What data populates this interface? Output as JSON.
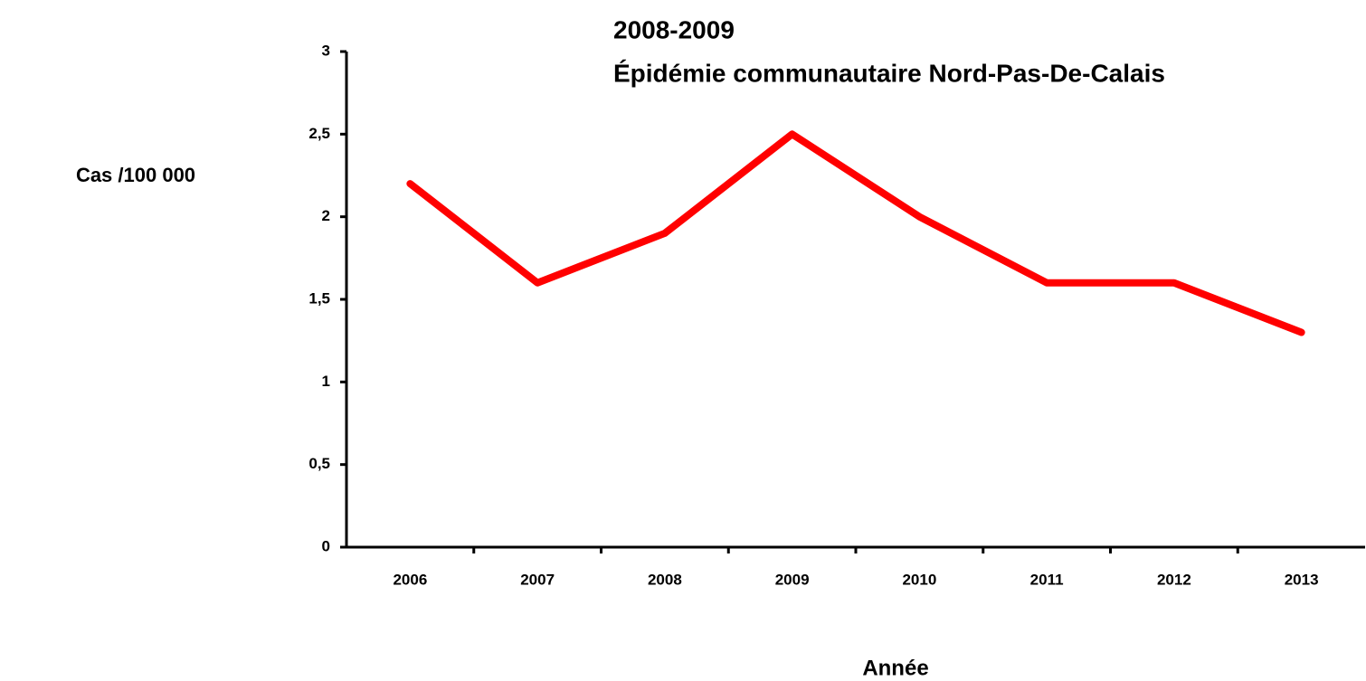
{
  "chart_data": {
    "type": "line",
    "annotation": [
      "2008-2009",
      "Épidémie communautaire Nord-Pas-De-Calais"
    ],
    "y_label": "Cas /100 000",
    "x_label": "Année",
    "categories": [
      "2006",
      "2007",
      "2008",
      "2009",
      "2010",
      "2011",
      "2012",
      "2013"
    ],
    "series": [
      {
        "color": "#ff0000",
        "values": [
          2.2,
          1.6,
          1.9,
          2.5,
          2.0,
          1.6,
          1.6,
          1.3
        ]
      }
    ],
    "ylim": [
      0,
      3
    ],
    "yticks": [
      0,
      {
        "value": 0.5,
        "label": "0,5"
      },
      1,
      {
        "value": 1.5,
        "label": "1,5"
      },
      2,
      {
        "value": 2.5,
        "label": "2,5"
      },
      3
    ],
    "grid": false
  }
}
